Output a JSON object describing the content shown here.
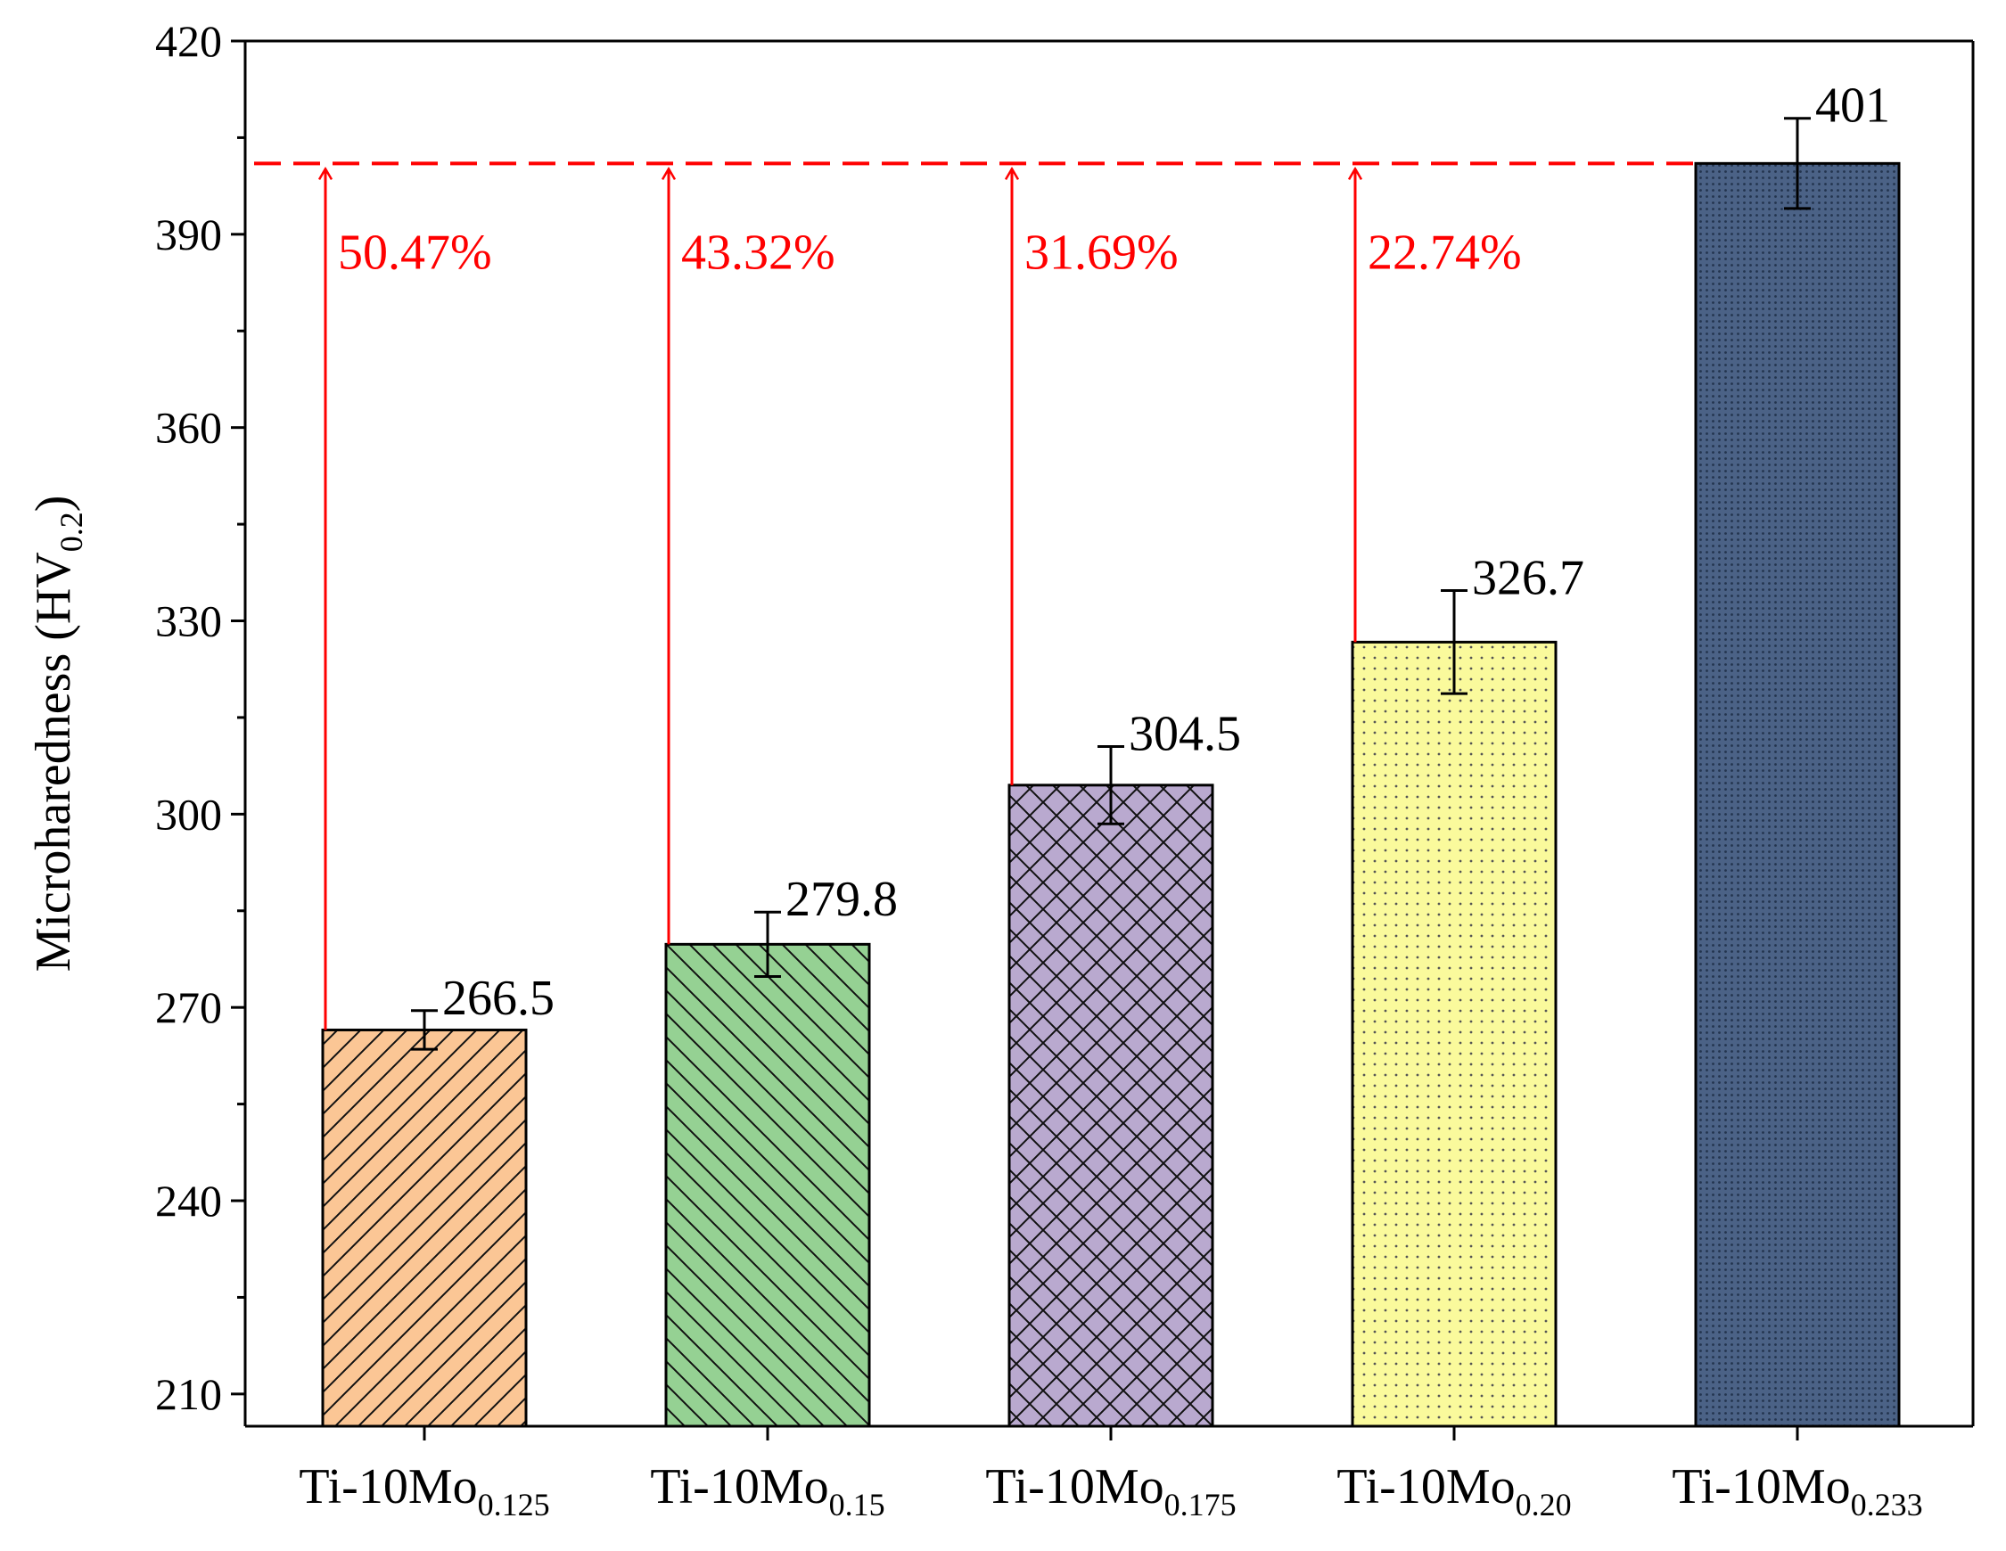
{
  "chart_data": {
    "type": "bar",
    "title": "",
    "xlabel": "",
    "ylabel": {
      "main": "Microharedness (HV",
      "sub": "0.2",
      "close": ")"
    },
    "ylim": [
      205,
      420
    ],
    "yticks": [
      210,
      240,
      270,
      300,
      330,
      360,
      390,
      420
    ],
    "categories": [
      {
        "base": "Ti-10Mo",
        "sub": "0.125"
      },
      {
        "base": "Ti-10Mo",
        "sub": "0.15"
      },
      {
        "base": "Ti-10Mo",
        "sub": "0.175"
      },
      {
        "base": "Ti-10Mo",
        "sub": "0.20"
      },
      {
        "base": "Ti-10Mo",
        "sub": "0.233"
      }
    ],
    "values": [
      266.5,
      279.8,
      304.5,
      326.7,
      401
    ],
    "value_labels": [
      "266.5",
      "279.8",
      "304.5",
      "326.7",
      "401"
    ],
    "errors": [
      3,
      5,
      6,
      8,
      7
    ],
    "increase_labels": [
      "50.47%",
      "43.32%",
      "31.69%",
      "22.74%"
    ],
    "reference_line": 401,
    "bar_fills": [
      "#fbc695",
      "#95d193",
      "#b9a9cf",
      "#fafa9c",
      "#4b6286"
    ],
    "patterns": [
      "diag-right",
      "diag-left",
      "crosshatch",
      "dots",
      "fine-dots"
    ],
    "annotation_color": "#ff0000"
  }
}
